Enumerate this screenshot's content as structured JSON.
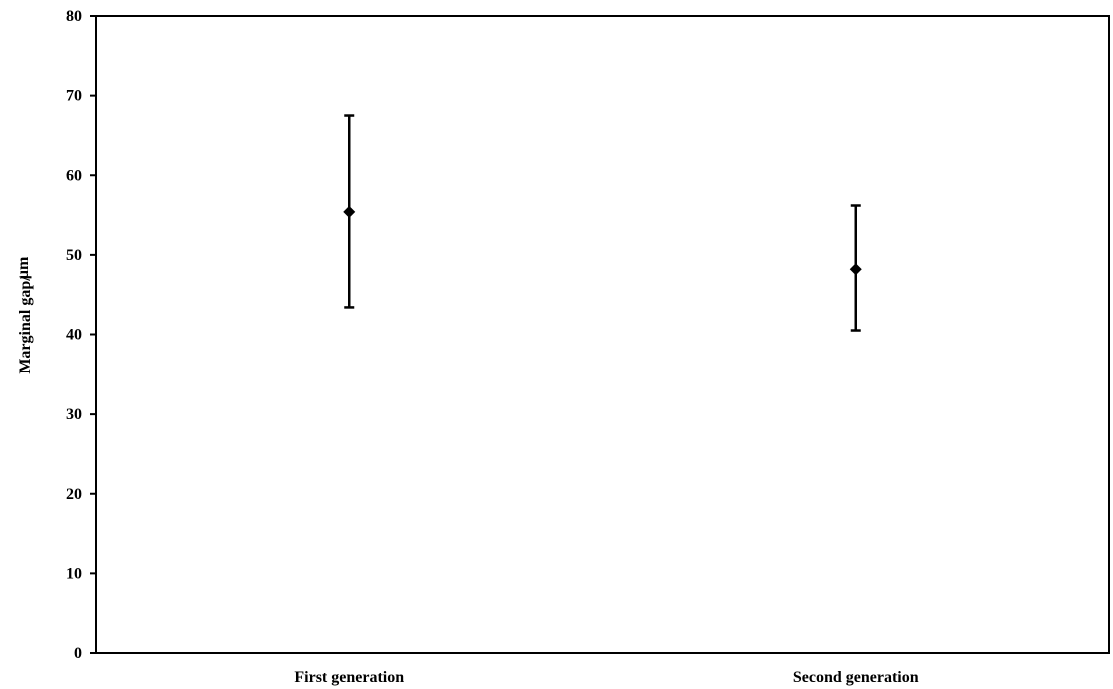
{
  "chart_data": {
    "type": "scatter",
    "title": "",
    "xlabel": "",
    "ylabel": "Marginal  gap/",
    "ylabel_unit": "µm",
    "categories": [
      "First generation",
      "Second generation"
    ],
    "values": [
      55.4,
      48.2
    ],
    "error_upper": [
      67.5,
      56.2
    ],
    "error_lower": [
      43.4,
      40.5
    ],
    "ylim": [
      0,
      80
    ],
    "yticks": [
      "0",
      "10",
      "20",
      "30",
      "40",
      "50",
      "60",
      "70",
      "80"
    ],
    "grid": false,
    "legend": false,
    "marker": "diamond",
    "color": "#000000"
  }
}
